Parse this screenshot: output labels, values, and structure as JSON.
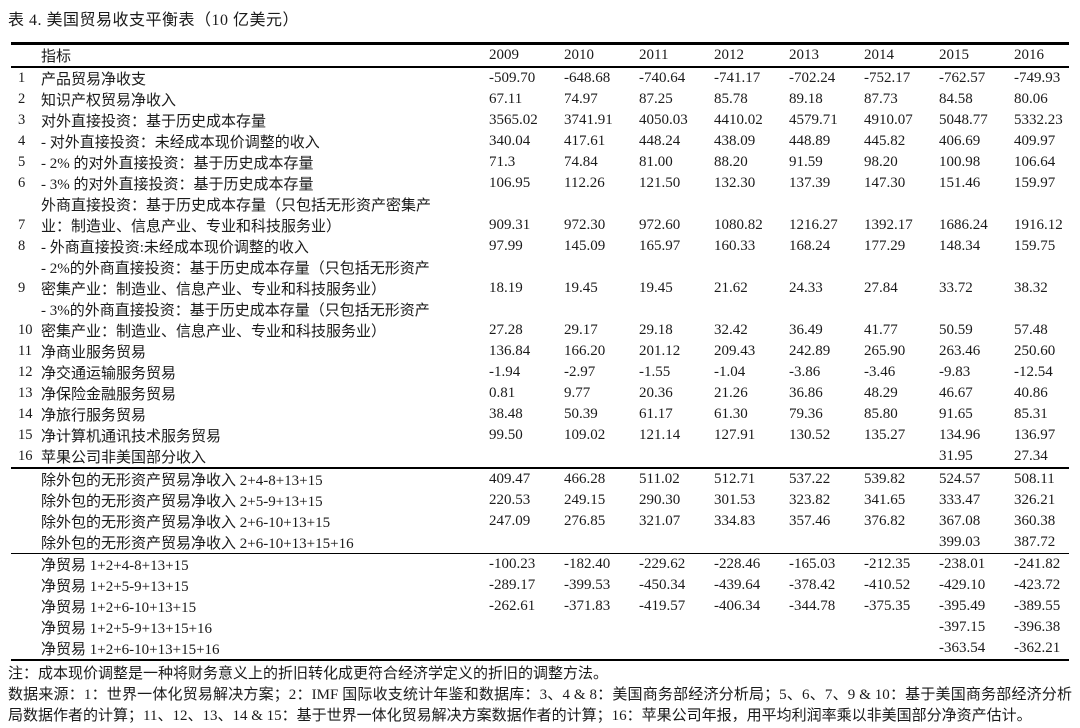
{
  "title": "表 4. 美国贸易收支平衡表（10 亿美元）",
  "table": {
    "header": {
      "indicator": "指标",
      "years": [
        "2009",
        "2010",
        "2011",
        "2012",
        "2013",
        "2014",
        "2015",
        "2016"
      ]
    },
    "sections": [
      {
        "name": "indicators",
        "rows": [
          {
            "num": "1",
            "label": "产品贸易净收支",
            "values": [
              "-509.70",
              "-648.68",
              "-740.64",
              "-741.17",
              "-702.24",
              "-752.17",
              "-762.57",
              "-749.93"
            ]
          },
          {
            "num": "2",
            "label": "知识产权贸易净收入",
            "values": [
              "67.11",
              "74.97",
              "87.25",
              "85.78",
              "89.18",
              "87.73",
              "84.58",
              "80.06"
            ]
          },
          {
            "num": "3",
            "label": "对外直接投资：基于历史成本存量",
            "values": [
              "3565.02",
              "3741.91",
              "4050.03",
              "4410.02",
              "4579.71",
              "4910.07",
              "5048.77",
              "5332.23"
            ]
          },
          {
            "num": "4",
            "label": "- 对外直接投资：未经成本现价调整的收入",
            "values": [
              "340.04",
              "417.61",
              "448.24",
              "438.09",
              "448.89",
              "445.82",
              "406.69",
              "409.97"
            ]
          },
          {
            "num": "5",
            "label": "- 2% 的对外直接投资：基于历史成本存量",
            "values": [
              "71.3",
              "74.84",
              "81.00",
              "88.20",
              "91.59",
              "98.20",
              "100.98",
              "106.64"
            ]
          },
          {
            "num": "6",
            "label": "- 3% 的对外直接投资：基于历史成本存量",
            "values": [
              "106.95",
              "112.26",
              "121.50",
              "132.30",
              "137.39",
              "147.30",
              "151.46",
              "159.97"
            ]
          },
          {
            "num": "",
            "label": "外商直接投资：基于历史成本存量（只包括无形资产密集产",
            "values": [
              "",
              "",
              "",
              "",
              "",
              "",
              "",
              ""
            ]
          },
          {
            "num": "7",
            "label": "业：制造业、信息产业、专业和科技服务业）",
            "values": [
              "909.31",
              "972.30",
              "972.60",
              "1080.82",
              "1216.27",
              "1392.17",
              "1686.24",
              "1916.12"
            ]
          },
          {
            "num": "8",
            "label": "- 外商直接投资:未经成本现价调整的收入",
            "values": [
              "97.99",
              "145.09",
              "165.97",
              "160.33",
              "168.24",
              "177.29",
              "148.34",
              "159.75"
            ]
          },
          {
            "num": "",
            "label": "- 2%的外商直接投资：基于历史成本存量（只包括无形资产",
            "values": [
              "",
              "",
              "",
              "",
              "",
              "",
              "",
              ""
            ]
          },
          {
            "num": "9",
            "label": "密集产业：制造业、信息产业、专业和科技服务业）",
            "values": [
              "18.19",
              "19.45",
              "19.45",
              "21.62",
              "24.33",
              "27.84",
              "33.72",
              "38.32"
            ]
          },
          {
            "num": "",
            "label": "- 3%的外商直接投资：基于历史成本存量（只包括无形资产",
            "values": [
              "",
              "",
              "",
              "",
              "",
              "",
              "",
              ""
            ]
          },
          {
            "num": "10",
            "label": "密集产业：制造业、信息产业、专业和科技服务业）",
            "values": [
              "27.28",
              "29.17",
              "29.18",
              "32.42",
              "36.49",
              "41.77",
              "50.59",
              "57.48"
            ]
          },
          {
            "num": "11",
            "label": "净商业服务贸易",
            "values": [
              "136.84",
              "166.20",
              "201.12",
              "209.43",
              "242.89",
              "265.90",
              "263.46",
              "250.60"
            ]
          },
          {
            "num": "12",
            "label": "净交通运输服务贸易",
            "values": [
              "-1.94",
              "-2.97",
              "-1.55",
              "-1.04",
              "-3.86",
              "-3.46",
              "-9.83",
              "-12.54"
            ]
          },
          {
            "num": "13",
            "label": "净保险金融服务贸易",
            "values": [
              "0.81",
              "9.77",
              "20.36",
              "21.26",
              "36.86",
              "48.29",
              "46.67",
              "40.86"
            ]
          },
          {
            "num": "14",
            "label": "净旅行服务贸易",
            "values": [
              "38.48",
              "50.39",
              "61.17",
              "61.30",
              "79.36",
              "85.80",
              "91.65",
              "85.31"
            ]
          },
          {
            "num": "15",
            "label": "净计算机通讯技术服务贸易",
            "values": [
              "99.50",
              "109.02",
              "121.14",
              "127.91",
              "130.52",
              "135.27",
              "134.96",
              "136.97"
            ]
          },
          {
            "num": "16",
            "label": "苹果公司非美国部分收入",
            "values": [
              "",
              "",
              "",
              "",
              "",
              "",
              "31.95",
              "27.34"
            ]
          }
        ]
      },
      {
        "name": "subtotals",
        "rows": [
          {
            "num": "",
            "label": "除外包的无形资产贸易净收入 2+4-8+13+15",
            "values": [
              "409.47",
              "466.28",
              "511.02",
              "512.71",
              "537.22",
              "539.82",
              "524.57",
              "508.11"
            ]
          },
          {
            "num": "",
            "label": "除外包的无形资产贸易净收入 2+5-9+13+15",
            "values": [
              "220.53",
              "249.15",
              "290.30",
              "301.53",
              "323.82",
              "341.65",
              "333.47",
              "326.21"
            ]
          },
          {
            "num": "",
            "label": "除外包的无形资产贸易净收入 2+6-10+13+15",
            "values": [
              "247.09",
              "276.85",
              "321.07",
              "334.83",
              "357.46",
              "376.82",
              "367.08",
              "360.38"
            ]
          },
          {
            "num": "",
            "label": "除外包的无形资产贸易净收入 2+6-10+13+15+16",
            "values": [
              "",
              "",
              "",
              "",
              "",
              "",
              "399.03",
              "387.72"
            ]
          }
        ]
      },
      {
        "name": "totals",
        "rows": [
          {
            "num": "",
            "label": "净贸易 1+2+4-8+13+15",
            "values": [
              "-100.23",
              "-182.40",
              "-229.62",
              "-228.46",
              "-165.03",
              "-212.35",
              "-238.01",
              "-241.82"
            ]
          },
          {
            "num": "",
            "label": "净贸易 1+2+5-9+13+15",
            "values": [
              "-289.17",
              "-399.53",
              "-450.34",
              "-439.64",
              "-378.42",
              "-410.52",
              "-429.10",
              "-423.72"
            ]
          },
          {
            "num": "",
            "label": "净贸易 1+2+6-10+13+15",
            "values": [
              "-262.61",
              "-371.83",
              "-419.57",
              "-406.34",
              "-344.78",
              "-375.35",
              "-395.49",
              "-389.55"
            ]
          },
          {
            "num": "",
            "label": "净贸易 1+2+5-9+13+15+16",
            "values": [
              "",
              "",
              "",
              "",
              "",
              "",
              "-397.15",
              "-396.38"
            ]
          },
          {
            "num": "",
            "label": "净贸易 1+2+6-10+13+15+16",
            "values": [
              "",
              "",
              "",
              "",
              "",
              "",
              "-363.54",
              "-362.21"
            ]
          }
        ]
      }
    ]
  },
  "notes": {
    "line1": "注：成本现价调整是一种将财务意义上的折旧转化成更符合经济学定义的折旧的调整方法。",
    "line2": "数据来源：1：世界一体化贸易解决方案；2：IMF 国际收支统计年鉴和数据库：3、4 & 8：美国商务部经济分析局；5、6、7、9 & 10：基于美国商务部经济分析局数据作者的计算；11、12、13、14 & 15：基于世界一体化贸易解决方案数据作者的计算；16：苹果公司年报，用平均利润率乘以非美国部分净资产估计。"
  }
}
